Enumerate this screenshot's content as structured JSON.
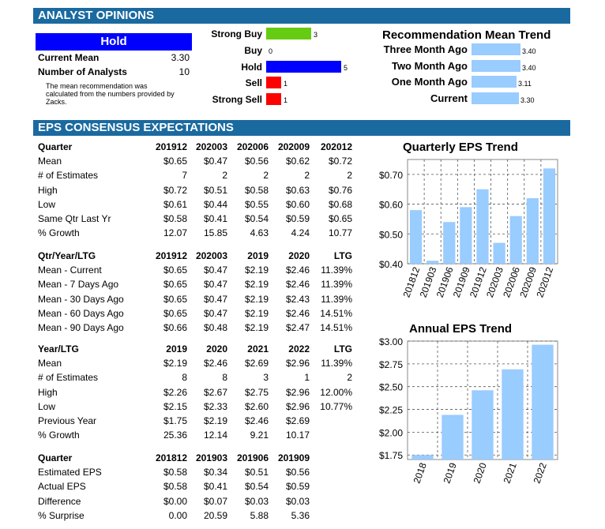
{
  "sections": {
    "analyst_opinions": "ANALYST OPINIONS",
    "eps_consensus": "EPS CONSENSUS EXPECTATIONS"
  },
  "rating": {
    "label": "Hold",
    "current_mean_label": "Current Mean",
    "current_mean": "3.30",
    "num_analysts_label": "Number of Analysts",
    "num_analysts": "10",
    "note": "The mean recommendation was calculated from the numbers provided by Zacks.",
    "colors": {
      "hold_box": "#0000ff"
    }
  },
  "recommendations": {
    "items": [
      {
        "label": "Strong Buy",
        "count": "3",
        "color": "#66cc11"
      },
      {
        "label": "Buy",
        "count": "0",
        "color": "#66cc11"
      },
      {
        "label": "Hold",
        "count": "5",
        "color": "#0000ff"
      },
      {
        "label": "Sell",
        "count": "1",
        "color": "#ff0000"
      },
      {
        "label": "Strong Sell",
        "count": "1",
        "color": "#ff0000"
      }
    ]
  },
  "trend": {
    "title": "Recommendation Mean Trend",
    "items": [
      {
        "label": "Three Month Ago",
        "value": "3.40"
      },
      {
        "label": "Two Month Ago",
        "value": "3.40"
      },
      {
        "label": "One Month Ago",
        "value": "3.11"
      },
      {
        "label": "Current",
        "value": "3.30"
      }
    ],
    "bar_color": "#99ccff"
  },
  "tables": {
    "quarter": {
      "headers": [
        "Quarter",
        "201912",
        "202003",
        "202006",
        "202009",
        "202012"
      ],
      "rows": [
        [
          "Mean",
          "$0.65",
          "$0.47",
          "$0.56",
          "$0.62",
          "$0.72"
        ],
        [
          "# of Estimates",
          "7",
          "2",
          "2",
          "2",
          "2"
        ],
        [
          "High",
          "$0.72",
          "$0.51",
          "$0.58",
          "$0.63",
          "$0.76"
        ],
        [
          "Low",
          "$0.61",
          "$0.44",
          "$0.55",
          "$0.60",
          "$0.68"
        ],
        [
          "Same Qtr Last Yr",
          "$0.58",
          "$0.41",
          "$0.54",
          "$0.59",
          "$0.65"
        ],
        [
          "% Growth",
          "12.07",
          "15.85",
          "4.63",
          "4.24",
          "10.77"
        ]
      ]
    },
    "qtr_year_ltg": {
      "headers": [
        "Qtr/Year/LTG",
        "201912",
        "202003",
        "2019",
        "2020",
        "LTG"
      ],
      "rows": [
        [
          "Mean - Current",
          "$0.65",
          "$0.47",
          "$2.19",
          "$2.46",
          "11.39%"
        ],
        [
          "Mean - 7 Days Ago",
          "$0.65",
          "$0.47",
          "$2.19",
          "$2.46",
          "11.39%"
        ],
        [
          "Mean - 30 Days Ago",
          "$0.65",
          "$0.47",
          "$2.19",
          "$2.43",
          "11.39%"
        ],
        [
          "Mean - 60 Days Ago",
          "$0.65",
          "$0.47",
          "$2.19",
          "$2.46",
          "14.51%"
        ],
        [
          "Mean - 90 Days Ago",
          "$0.66",
          "$0.48",
          "$2.19",
          "$2.47",
          "14.51%"
        ]
      ]
    },
    "year_ltg": {
      "headers": [
        "Year/LTG",
        "2019",
        "2020",
        "2021",
        "2022",
        "LTG"
      ],
      "rows": [
        [
          "Mean",
          "$2.19",
          "$2.46",
          "$2.69",
          "$2.96",
          "11.39%"
        ],
        [
          "# of Estimates",
          "8",
          "8",
          "3",
          "1",
          "2"
        ],
        [
          "High",
          "$2.26",
          "$2.67",
          "$2.75",
          "$2.96",
          "12.00%"
        ],
        [
          "Low",
          "$2.15",
          "$2.33",
          "$2.60",
          "$2.96",
          "10.77%"
        ],
        [
          "Previous Year",
          "$1.75",
          "$2.19",
          "$2.46",
          "$2.69",
          ""
        ],
        [
          "% Growth",
          "25.36",
          "12.14",
          "9.21",
          "10.17",
          ""
        ]
      ]
    },
    "surprise": {
      "headers": [
        "Quarter",
        "201812",
        "201903",
        "201906",
        "201909",
        ""
      ],
      "rows": [
        [
          "Estimated EPS",
          "$0.58",
          "$0.34",
          "$0.51",
          "$0.56",
          ""
        ],
        [
          "Actual EPS",
          "$0.58",
          "$0.41",
          "$0.54",
          "$0.59",
          ""
        ],
        [
          "Difference",
          "$0.00",
          "$0.07",
          "$0.03",
          "$0.03",
          ""
        ],
        [
          "% Surprise",
          "0.00",
          "20.59",
          "5.88",
          "5.36",
          ""
        ]
      ]
    }
  },
  "chart_data": [
    {
      "type": "bar",
      "title": "Quarterly EPS Trend",
      "categories": [
        "201812",
        "201903",
        "201906",
        "201909",
        "201912",
        "202003",
        "202006",
        "202009",
        "202012"
      ],
      "values": [
        0.58,
        0.41,
        0.54,
        0.59,
        0.65,
        0.47,
        0.56,
        0.62,
        0.72
      ],
      "yticks": [
        "$0.40",
        "$0.50",
        "$0.60",
        "$0.70"
      ],
      "ylim": [
        0.4,
        0.75
      ],
      "grid": true,
      "color": "#99ccff"
    },
    {
      "type": "bar",
      "title": "Annual EPS Trend",
      "categories": [
        "2018",
        "2019",
        "2020",
        "2021",
        "2022"
      ],
      "values": [
        1.75,
        2.19,
        2.46,
        2.69,
        2.96
      ],
      "yticks": [
        "$1.75",
        "$2.00",
        "$2.25",
        "$2.50",
        "$2.75",
        "$3.00"
      ],
      "ylim": [
        1.7,
        3.0
      ],
      "grid": true,
      "color": "#99ccff"
    }
  ]
}
